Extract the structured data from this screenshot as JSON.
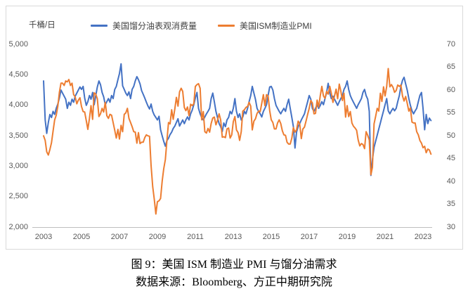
{
  "chart_data": {
    "type": "line",
    "title": "图 9：美国 ISM 制造业 PMI 与馏分油需求",
    "source": "数据来源：Bloomberg、方正中期研究院",
    "unit_label": "千桶/日",
    "x_start_year": 2003,
    "points_per_year": 12,
    "x_tick_labels": [
      "2003",
      "2005",
      "2007",
      "2009",
      "2011",
      "2013",
      "2015",
      "2017",
      "2019",
      "2021",
      "2023"
    ],
    "left_axis": {
      "min": 2000,
      "max": 5000,
      "ticks": [
        "5,000",
        "4,500",
        "4,000",
        "3,500",
        "3,000",
        "2,500",
        "2,000"
      ]
    },
    "right_axis": {
      "min": 30,
      "max": 70,
      "ticks": [
        "70",
        "65",
        "60",
        "55",
        "50",
        "45",
        "40",
        "35",
        "30"
      ]
    },
    "grid": "off",
    "legend_position": "top",
    "series": [
      {
        "name": "美国馏分油表观消费量",
        "color": "#4472C4",
        "axis": "left",
        "values": [
          4400,
          3760,
          3540,
          3720,
          3850,
          3800,
          3900,
          3850,
          3950,
          4020,
          4120,
          4250,
          4200,
          4150,
          4100,
          3950,
          4050,
          4000,
          4100,
          4050,
          4150,
          4200,
          4250,
          4300,
          4260,
          4310,
          4120,
          4000,
          4060,
          4160,
          4100,
          4210,
          4010,
          4160,
          4300,
          4400,
          4340,
          4210,
          4140,
          4010,
          4060,
          4110,
          4050,
          4160,
          4110,
          4260,
          4310,
          4420,
          4520,
          4680,
          4320,
          4260,
          4200,
          4160,
          4220,
          4110,
          4260,
          4310,
          4400,
          4470,
          4420,
          4350,
          4240,
          4180,
          4120,
          4050,
          3990,
          3940,
          4020,
          3900,
          3840,
          3800,
          3760,
          3820,
          3600,
          3500,
          3410,
          3330,
          3420,
          3460,
          3520,
          3560,
          3620,
          3660,
          3720,
          3780,
          3660,
          3710,
          3760,
          3700,
          3760,
          3810,
          3760,
          3860,
          3920,
          4010,
          4120,
          4210,
          3950,
          3860,
          3800,
          3760,
          3810,
          3860,
          3900,
          3950,
          4110,
          4200,
          4060,
          3900,
          3800,
          3700,
          3650,
          3570,
          3710,
          3650,
          3760,
          3800,
          3900,
          3860,
          3950,
          4110,
          3900,
          3800,
          3860,
          3760,
          3810,
          3900,
          3860,
          3950,
          4060,
          4160,
          4310,
          4200,
          4100,
          3950,
          3900,
          3860,
          3810,
          3900,
          3950,
          4010,
          4160,
          4300,
          4310,
          4250,
          4110,
          4000,
          3950,
          3900,
          3860,
          3910,
          3950,
          3900,
          4010,
          4100,
          3950,
          3800,
          3650,
          3300,
          3560,
          3650,
          3700,
          3760,
          3810,
          3860,
          3960,
          4060,
          4160,
          4100,
          3950,
          3900,
          3950,
          4010,
          3950,
          4000,
          4060,
          4010,
          4110,
          4210,
          4360,
          4200,
          4110,
          4150,
          4100,
          4050,
          4000,
          4060,
          4110,
          4160,
          4260,
          4310,
          4400,
          4260,
          4160,
          4100,
          4050,
          4000,
          3950,
          4010,
          4060,
          4110,
          4210,
          4260,
          4160,
          4100,
          3900,
          2850,
          3110,
          3310,
          3410,
          3510,
          3610,
          3710,
          3810,
          3910,
          4010,
          4110,
          3910,
          3860,
          3910,
          3950,
          3910,
          3950,
          4060,
          4160,
          4310,
          4410,
          4460,
          4350,
          4250,
          4110,
          4000,
          3910,
          3860,
          3910,
          3950,
          4060,
          4160,
          4210,
          3950,
          3600,
          3850,
          3700,
          3790,
          3750
        ]
      },
      {
        "name": "美国ISM制造业PMI",
        "color": "#ED7D31",
        "axis": "right",
        "values": [
          50.0,
          49.0,
          46.5,
          45.8,
          47.0,
          48.5,
          51.0,
          53.5,
          54.5,
          56.5,
          59.5,
          61.5,
          61.5,
          61.0,
          62.0,
          61.8,
          62.3,
          61.0,
          61.5,
          59.0,
          58.5,
          57.0,
          57.8,
          58.3,
          56.4,
          55.3,
          55.2,
          53.3,
          51.4,
          53.8,
          56.6,
          53.6,
          59.4,
          59.1,
          58.1,
          54.2,
          54.8,
          56.0,
          55.2,
          57.3,
          54.4,
          53.8,
          54.7,
          54.5,
          52.9,
          51.2,
          49.5,
          51.4,
          49.3,
          52.3,
          50.9,
          54.7,
          55.0,
          56.0,
          53.8,
          52.9,
          52.0,
          50.9,
          50.8,
          48.4,
          50.7,
          48.3,
          48.6,
          48.6,
          49.6,
          50.2,
          50.0,
          49.9,
          43.5,
          38.9,
          36.2,
          32.9,
          35.6,
          35.8,
          36.3,
          40.1,
          42.8,
          44.8,
          48.9,
          52.9,
          52.6,
          55.7,
          53.6,
          55.9,
          58.4,
          56.5,
          59.6,
          60.4,
          59.7,
          56.2,
          55.5,
          56.3,
          54.4,
          56.9,
          56.6,
          57.0,
          60.8,
          61.2,
          61.4,
          60.4,
          53.5,
          55.3,
          50.9,
          50.6,
          51.6,
          50.8,
          52.7,
          53.9,
          54.1,
          52.4,
          53.4,
          54.8,
          53.5,
          49.7,
          49.8,
          49.6,
          51.5,
          51.7,
          49.5,
          50.2,
          53.1,
          54.2,
          51.3,
          50.7,
          49.0,
          50.9,
          55.4,
          55.7,
          56.2,
          56.4,
          57.3,
          56.5,
          51.3,
          53.2,
          53.7,
          54.9,
          55.4,
          55.3,
          57.1,
          59.0,
          56.6,
          59.0,
          58.7,
          55.5,
          53.5,
          52.9,
          51.5,
          51.5,
          52.8,
          53.5,
          52.7,
          51.1,
          50.2,
          50.1,
          48.6,
          48.2,
          48.2,
          49.5,
          51.8,
          50.8,
          51.3,
          53.2,
          52.6,
          49.4,
          51.5,
          51.9,
          53.2,
          54.7,
          56.0,
          57.7,
          57.2,
          54.8,
          54.9,
          57.8,
          56.3,
          58.8,
          60.8,
          58.7,
          58.2,
          59.7,
          59.1,
          60.8,
          59.3,
          57.3,
          58.7,
          60.2,
          58.1,
          61.3,
          59.8,
          57.7,
          59.3,
          54.1,
          56.6,
          54.2,
          55.3,
          52.8,
          52.1,
          51.7,
          51.2,
          49.1,
          47.8,
          48.3,
          48.1,
          47.2,
          50.9,
          50.1,
          49.1,
          41.5,
          43.1,
          52.6,
          54.2,
          56.0,
          55.4,
          59.3,
          57.5,
          60.7,
          58.7,
          60.8,
          64.7,
          60.7,
          61.2,
          60.6,
          59.5,
          59.9,
          61.1,
          60.8,
          61.1,
          58.7,
          57.6,
          58.6,
          57.1,
          55.4,
          56.1,
          53.0,
          52.8,
          52.8,
          50.9,
          50.2,
          49.0,
          48.4,
          47.4,
          47.7,
          46.3,
          47.1,
          46.9,
          46.0
        ]
      }
    ]
  },
  "layout_colors": {
    "axis_text": "#595959",
    "axis_line": "#bfbfbf",
    "chart_border": "#d9d9d9"
  }
}
